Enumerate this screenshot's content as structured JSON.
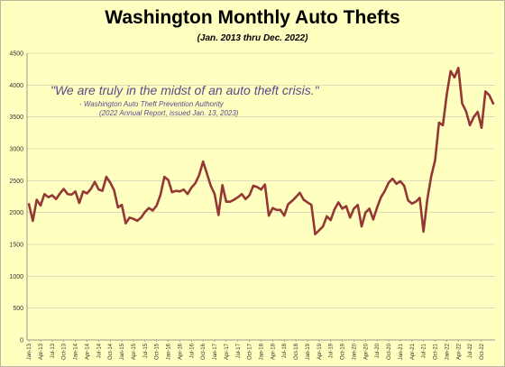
{
  "chart_data": {
    "type": "line",
    "title": "Washington Monthly Auto Thefts",
    "subtitle": "(Jan. 2013 thru Dec. 2022)",
    "annotation": {
      "quote": "\"We are truly in the midst of an auto theft crisis.\"",
      "attribution": "- Washington Auto Theft Prevention Authority",
      "source": "(2022 Annual Report, issued Jan. 13, 2023)"
    },
    "xlabel": "",
    "ylabel": "",
    "ylim": [
      0,
      4500
    ],
    "yticks": [
      0,
      500,
      1000,
      1500,
      2000,
      2500,
      3000,
      3500,
      4000,
      4500
    ],
    "grid": true,
    "line_color": "#953735",
    "x_tick_labels": [
      "Jan-13",
      "Apr-13",
      "Jul-13",
      "Oct-13",
      "Jan-14",
      "Apr-14",
      "Jul-14",
      "Oct-14",
      "Jan-15",
      "Apr-15",
      "Jul-15",
      "Oct-15",
      "Jan-16",
      "Apr-16",
      "Jul-16",
      "Oct-16",
      "Jan-17",
      "Apr-17",
      "Jul-17",
      "Oct-17",
      "Jan-18",
      "Apr-18",
      "Jul-18",
      "Oct-18",
      "Jan-19",
      "Apr-19",
      "Jul-19",
      "Oct-19",
      "Jan-20",
      "Apr-20",
      "Jul-20",
      "Oct-20",
      "Jan-21",
      "Apr-21",
      "Jul-21",
      "Oct-21",
      "Jan-22",
      "Apr-22",
      "Jul-22",
      "Oct-22"
    ],
    "values": [
      2130,
      1870,
      2200,
      2110,
      2290,
      2240,
      2270,
      2210,
      2300,
      2370,
      2290,
      2280,
      2330,
      2150,
      2330,
      2300,
      2370,
      2480,
      2360,
      2340,
      2560,
      2470,
      2350,
      2080,
      2120,
      1830,
      1920,
      1900,
      1870,
      1920,
      2010,
      2070,
      2030,
      2110,
      2280,
      2560,
      2510,
      2320,
      2340,
      2330,
      2360,
      2290,
      2390,
      2460,
      2590,
      2800,
      2610,
      2420,
      2290,
      1960,
      2430,
      2170,
      2170,
      2200,
      2240,
      2290,
      2210,
      2270,
      2420,
      2400,
      2360,
      2440,
      1950,
      2070,
      2040,
      2040,
      1950,
      2130,
      2180,
      2240,
      2310,
      2200,
      2160,
      2120,
      1660,
      1720,
      1780,
      1940,
      1880,
      2050,
      2160,
      2060,
      2100,
      1920,
      2060,
      2120,
      1780,
      2000,
      2060,
      1890,
      2080,
      2240,
      2340,
      2470,
      2530,
      2450,
      2490,
      2420,
      2190,
      2140,
      2170,
      2230,
      1700,
      2210,
      2570,
      2820,
      3410,
      3370,
      3850,
      4220,
      4120,
      4270,
      3710,
      3590,
      3370,
      3500,
      3580,
      3330,
      3900,
      3840,
      3710
    ]
  }
}
